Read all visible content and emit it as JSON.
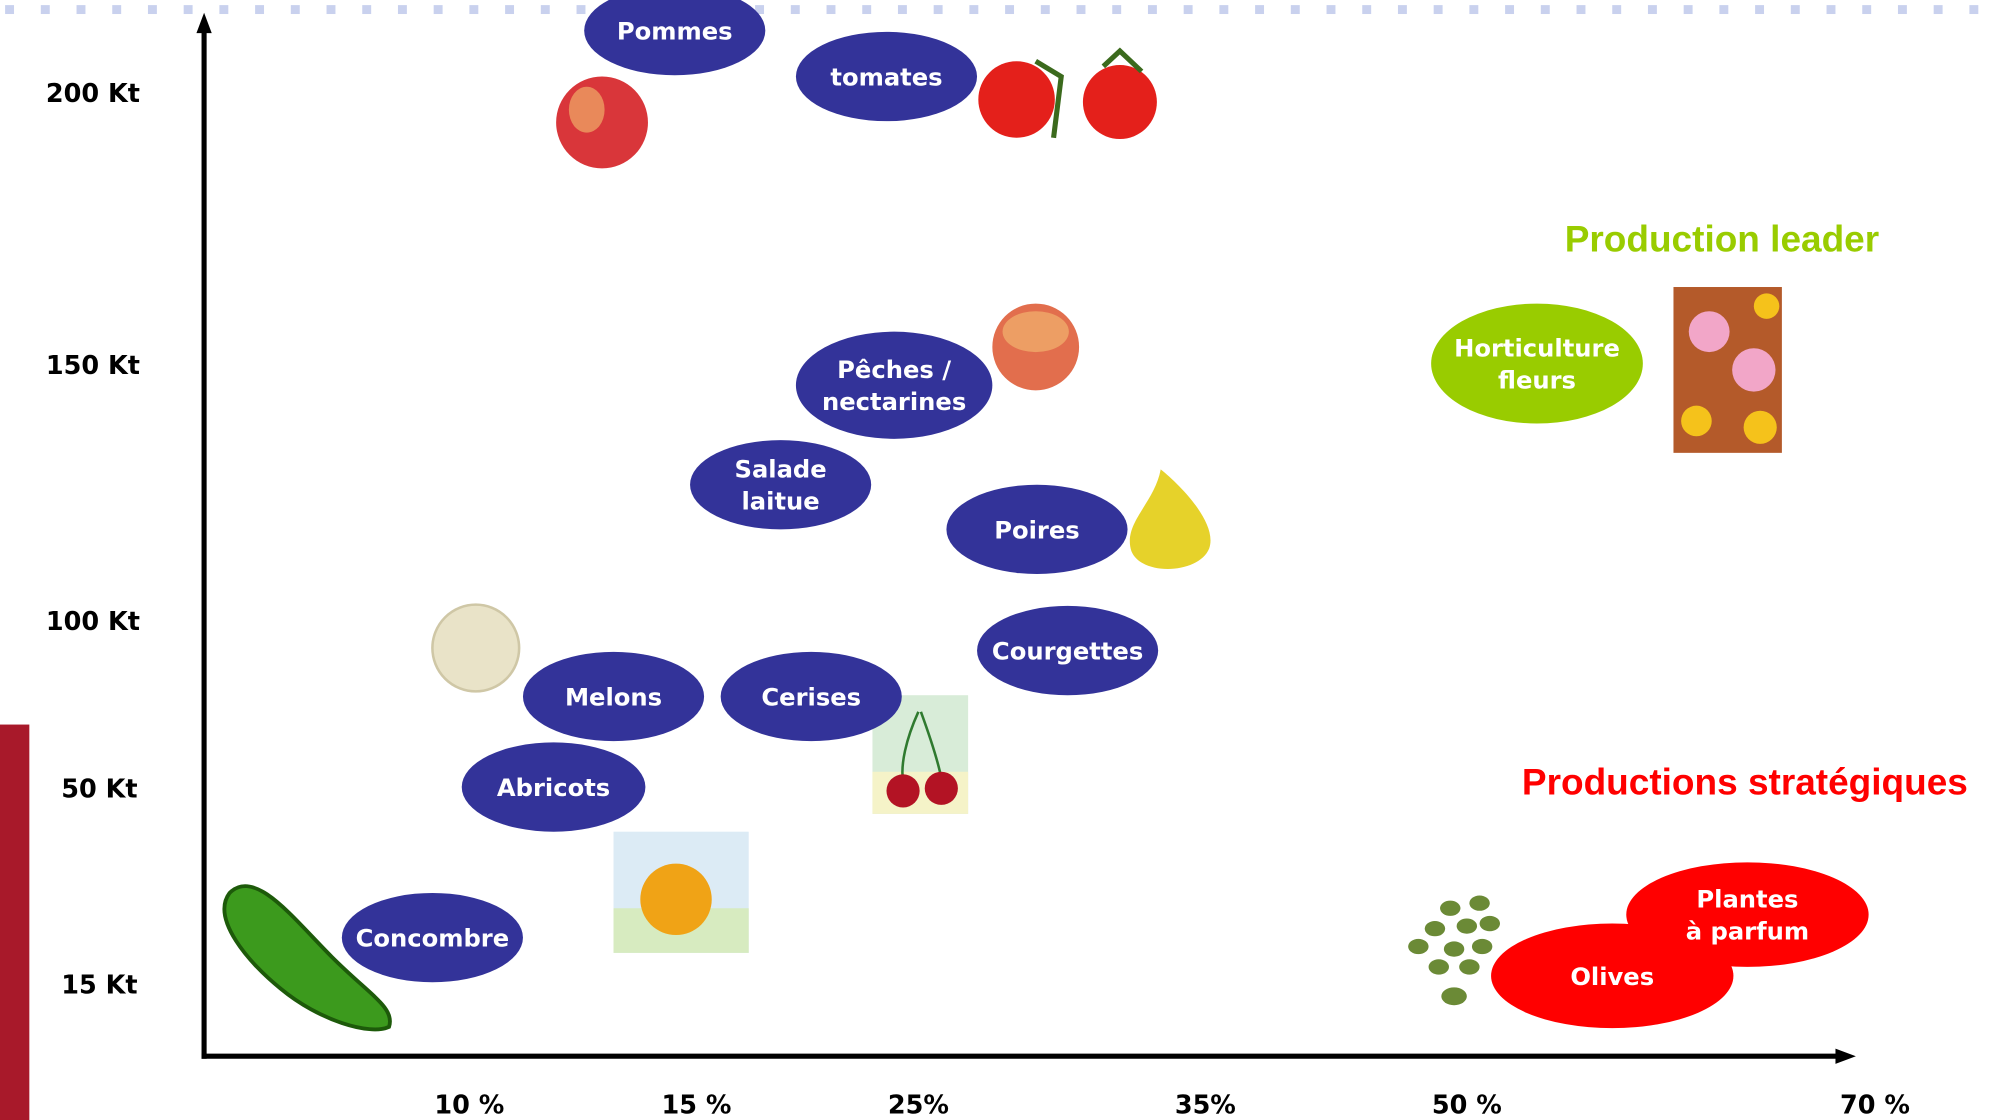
{
  "y_axis": {
    "labels": [
      "200 Kt",
      "150 Kt",
      "100 Kt",
      "50 Kt",
      "15 Kt"
    ]
  },
  "x_axis": {
    "labels": [
      "10 %",
      "15 %",
      "25%",
      "35%",
      "50 %",
      "70 %"
    ]
  },
  "groups": {
    "leader": "Production leader",
    "strategic": "Productions stratégiques"
  },
  "bubbles": [
    {
      "lines": [
        "Pommes"
      ]
    },
    {
      "lines": [
        "tomates"
      ]
    },
    {
      "lines": [
        "Pêches /",
        "nectarines"
      ]
    },
    {
      "lines": [
        "Salade",
        "laitue"
      ]
    },
    {
      "lines": [
        "Poires"
      ]
    },
    {
      "lines": [
        "Courgettes"
      ]
    },
    {
      "lines": [
        "Melons"
      ]
    },
    {
      "lines": [
        "Cerises"
      ]
    },
    {
      "lines": [
        "Abricots"
      ]
    },
    {
      "lines": [
        "Concombre"
      ]
    },
    {
      "lines": [
        "Horticulture",
        "fleurs"
      ]
    },
    {
      "lines": [
        "Olives"
      ]
    },
    {
      "lines": [
        "Plantes",
        "à parfum"
      ]
    }
  ]
}
